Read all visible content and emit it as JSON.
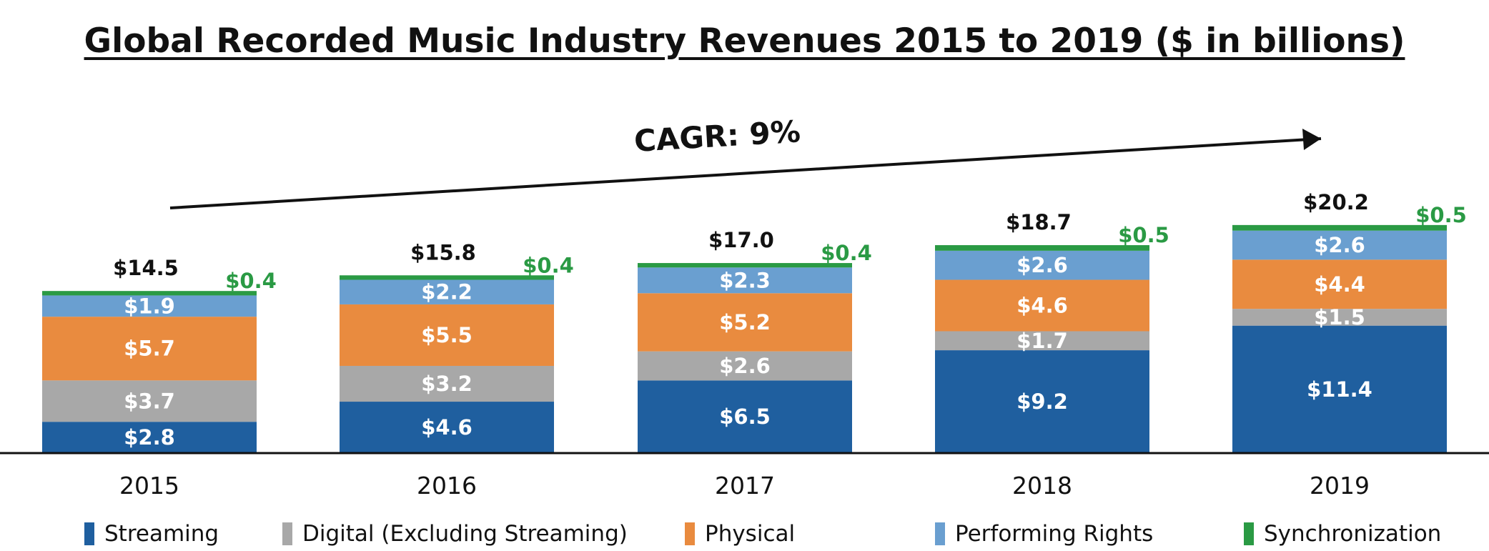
{
  "title": "Global Recorded Music Industry Revenues 2015 to 2019 ($ in billions)",
  "cagr_label": "CAGR: 9%",
  "colors": {
    "streaming": "#1f5f9f",
    "digital": "#a8a8a8",
    "physical": "#e98b3f",
    "performing": "#6a9fd0",
    "sync": "#2a9a44",
    "sync_text": "#2a9a44"
  },
  "chart_data": {
    "type": "bar",
    "stacked": true,
    "title": "Global Recorded Music Industry Revenues 2015 to 2019 ($ in billions)",
    "xlabel": "",
    "ylabel": "",
    "categories": [
      "2015",
      "2016",
      "2017",
      "2018",
      "2019"
    ],
    "series": [
      {
        "name": "Streaming",
        "color": "#1f5f9f",
        "values": [
          2.8,
          4.6,
          6.5,
          9.2,
          11.4
        ],
        "labels": [
          "$2.8",
          "$4.6",
          "$6.5",
          "$9.2",
          "$11.4"
        ]
      },
      {
        "name": "Digital (Excluding Streaming)",
        "color": "#a8a8a8",
        "values": [
          3.7,
          3.2,
          2.6,
          1.7,
          1.5
        ],
        "labels": [
          "$3.7",
          "$3.2",
          "$2.6",
          "$1.7",
          "$1.5"
        ]
      },
      {
        "name": "Physical",
        "color": "#e98b3f",
        "values": [
          5.7,
          5.5,
          5.2,
          4.6,
          4.4
        ],
        "labels": [
          "$5.7",
          "$5.5",
          "$5.2",
          "$4.6",
          "$4.4"
        ]
      },
      {
        "name": "Performing Rights",
        "color": "#6a9fd0",
        "values": [
          1.9,
          2.2,
          2.3,
          2.6,
          2.6
        ],
        "labels": [
          "$1.9",
          "$2.2",
          "$2.3",
          "$2.6",
          "$2.6"
        ]
      },
      {
        "name": "Synchronization",
        "color": "#2a9a44",
        "values": [
          0.4,
          0.4,
          0.4,
          0.5,
          0.5
        ],
        "labels": [
          "$0.4",
          "$0.4",
          "$0.4",
          "$0.5",
          "$0.5"
        ]
      }
    ],
    "totals": [
      14.5,
      15.8,
      17.0,
      18.7,
      20.2
    ],
    "total_labels": [
      "$14.5",
      "$15.8",
      "$17.0",
      "$18.7",
      "$20.2"
    ],
    "ylim": [
      0,
      20.2
    ],
    "grid": false,
    "legend": "bottom",
    "annotations": [
      "CAGR: 9%"
    ]
  }
}
